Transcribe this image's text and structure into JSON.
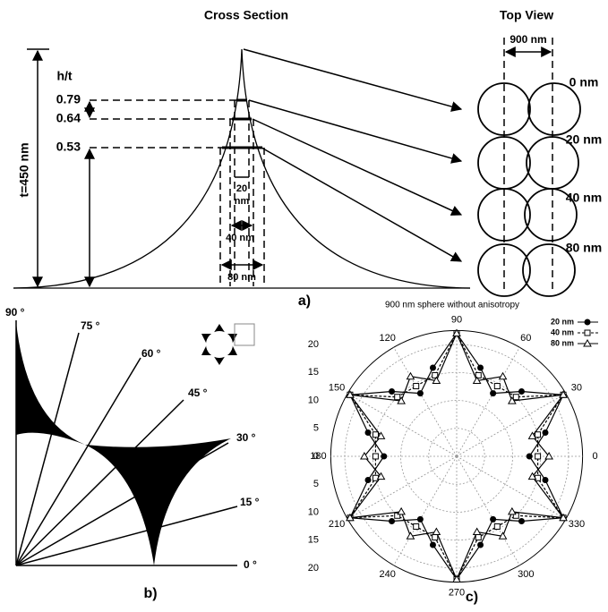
{
  "panel_a": {
    "label": "a)",
    "cross_section": {
      "title": "Cross Section",
      "thickness": "t=450 nm",
      "ratio_header": "h/t",
      "ratios": [
        0.79,
        0.64,
        0.53
      ],
      "small_width": [
        "20",
        "nm"
      ],
      "widths": [
        "40 nm",
        "80 nm"
      ]
    },
    "top_view": {
      "title": "Top View",
      "spacing": "900 nm",
      "rows": [
        "0 nm",
        "20 nm",
        "40 nm",
        "80 nm"
      ]
    }
  },
  "panel_b": {
    "label": "b)",
    "angles": [
      "90 °",
      "75 °",
      "60 °",
      "45 °",
      "30 °",
      "15 °",
      "0 °"
    ]
  },
  "chart_data": {
    "type": "polar",
    "label": "c)",
    "title": "900 nm sphere without anisotropy",
    "x": [
      0,
      15,
      30,
      45,
      60,
      75,
      90,
      105,
      120,
      135,
      150,
      165,
      180,
      195,
      210,
      225,
      240,
      255,
      270,
      285,
      300,
      315,
      330,
      345
    ],
    "series": [
      {
        "name": "20 nm",
        "color": "#000000",
        "marker": "circle",
        "dash": false,
        "values": [
          13,
          16.4,
          22,
          16.4,
          13,
          16.4,
          22,
          16.4,
          13,
          16.4,
          22,
          16.4,
          13,
          16.4,
          22,
          16.4,
          13,
          16.4,
          22,
          16.4,
          13,
          16.4,
          22,
          16.4
        ]
      },
      {
        "name": "40 nm",
        "color": "#000000",
        "marker": "square",
        "dash": true,
        "values": [
          14.5,
          15,
          22,
          15,
          14.5,
          15,
          22,
          15,
          14.5,
          15,
          22,
          15,
          14.5,
          15,
          22,
          15,
          14.5,
          15,
          22,
          15,
          14.5,
          15,
          22,
          15
        ]
      },
      {
        "name": "80 nm",
        "color": "#000000",
        "marker": "triangle",
        "dash": false,
        "values": [
          16.5,
          14,
          22,
          14,
          16.5,
          14,
          22,
          14,
          16.5,
          14,
          22,
          14,
          16.5,
          14,
          22,
          14,
          16.5,
          14,
          22,
          14,
          16.5,
          14,
          22,
          14
        ]
      }
    ],
    "rlim": [
      0,
      22.5
    ],
    "rticks": [
      0,
      5,
      10,
      15,
      20
    ],
    "angle_ticks": [
      0,
      30,
      60,
      90,
      120,
      150,
      180,
      210,
      240,
      270,
      300,
      330
    ],
    "grid": true
  }
}
